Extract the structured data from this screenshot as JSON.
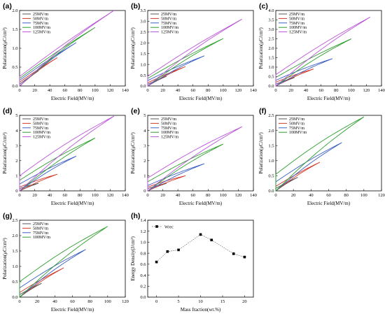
{
  "colors": {
    "25MV/m": "#555555",
    "50MV/m": "#d43a2a",
    "75MV/m": "#3b5fc4",
    "100MV/m": "#2e9e2e",
    "125MV/m": "#bb55d8",
    "wrec": "#000000"
  },
  "chart_data": [
    {
      "panel": "(a)",
      "type": "line",
      "xlabel": "Electric Field(MV/m)",
      "ylabel": "Polarization(μC/cm²)",
      "xlim": [
        0,
        140
      ],
      "ylim": [
        0,
        2.0
      ],
      "xticks": [
        0,
        20,
        40,
        60,
        80,
        100,
        120,
        140
      ],
      "yticks": [
        0.0,
        0.5,
        1.0,
        1.5,
        2.0
      ],
      "yticklabels": [
        "0.0",
        "0.5",
        "1.0",
        "1.5",
        "2.0"
      ],
      "legend": "top-left",
      "series": [
        {
          "name": "25MV/m",
          "emax": 25,
          "pmax": 0.4,
          "pr": 0.05
        },
        {
          "name": "50MV/m",
          "emax": 50,
          "pmax": 0.75,
          "pr": 0.1
        },
        {
          "name": "75MV/m",
          "emax": 75,
          "pmax": 1.15,
          "pr": 0.15
        },
        {
          "name": "100MV/m",
          "emax": 100,
          "pmax": 1.55,
          "pr": 0.2
        },
        {
          "name": "125MV/m",
          "emax": 125,
          "pmax": 2.0,
          "pr": 0.25
        }
      ]
    },
    {
      "panel": "(b)",
      "type": "line",
      "xlabel": "Electric Field(MV/m)",
      "ylabel": "Polarization(μC/cm²)",
      "xlim": [
        0,
        140
      ],
      "ylim": [
        0,
        3.5
      ],
      "xticks": [
        0,
        20,
        40,
        60,
        80,
        100,
        120,
        140
      ],
      "yticks": [
        0.0,
        0.5,
        1.0,
        1.5,
        2.0,
        2.5,
        3.0,
        3.5
      ],
      "yticklabels": [
        "0.0",
        "0.5",
        "1.0",
        "1.5",
        "2.0",
        "2.5",
        "3.0",
        "3.5"
      ],
      "legend": "top-left",
      "series": [
        {
          "name": "25MV/m",
          "emax": 25,
          "pmax": 0.45,
          "pr": 0.08
        },
        {
          "name": "50MV/m",
          "emax": 50,
          "pmax": 0.9,
          "pr": 0.15
        },
        {
          "name": "75MV/m",
          "emax": 75,
          "pmax": 1.4,
          "pr": 0.25
        },
        {
          "name": "100MV/m",
          "emax": 100,
          "pmax": 2.2,
          "pr": 0.35
        },
        {
          "name": "125MV/m",
          "emax": 125,
          "pmax": 3.1,
          "pr": 0.45
        }
      ]
    },
    {
      "panel": "(c)",
      "type": "line",
      "xlabel": "Electric Field(MV/m)",
      "ylabel": "Polarization(μC/cm²)",
      "xlim": [
        0,
        140
      ],
      "ylim": [
        0,
        4.0
      ],
      "xticks": [
        0,
        20,
        40,
        60,
        80,
        100,
        120,
        140
      ],
      "yticks": [
        0.0,
        0.5,
        1.0,
        1.5,
        2.0,
        2.5,
        3.0,
        3.5,
        4.0
      ],
      "yticklabels": [
        "0.0",
        "0.5",
        "1.0",
        "1.5",
        "2.0",
        "2.5",
        "3.0",
        "3.5",
        "4.0"
      ],
      "legend": "top-left",
      "series": [
        {
          "name": "25MV/m",
          "emax": 25,
          "pmax": 0.45,
          "pr": 0.1
        },
        {
          "name": "50MV/m",
          "emax": 50,
          "pmax": 0.9,
          "pr": 0.2
        },
        {
          "name": "75MV/m",
          "emax": 75,
          "pmax": 1.45,
          "pr": 0.3
        },
        {
          "name": "100MV/m",
          "emax": 100,
          "pmax": 2.5,
          "pr": 0.45
        },
        {
          "name": "125MV/m",
          "emax": 125,
          "pmax": 3.65,
          "pr": 0.6
        }
      ]
    },
    {
      "panel": "(d)",
      "type": "line",
      "xlabel": "Electric Field(MV/m)",
      "ylabel": "Polarization(μC/cm²)",
      "xlim": [
        0,
        140
      ],
      "ylim": [
        0,
        5
      ],
      "xticks": [
        0,
        20,
        40,
        60,
        80,
        100,
        120,
        140
      ],
      "yticks": [
        0,
        1,
        2,
        3,
        4,
        5
      ],
      "yticklabels": [
        "0",
        "1",
        "2",
        "3",
        "4",
        "5"
      ],
      "legend": "top-left",
      "series": [
        {
          "name": "25MV/m",
          "emax": 25,
          "pmax": 0.5,
          "pr": 0.15
        },
        {
          "name": "50MV/m",
          "emax": 50,
          "pmax": 1.1,
          "pr": 0.25
        },
        {
          "name": "75MV/m",
          "emax": 75,
          "pmax": 2.3,
          "pr": 0.45
        },
        {
          "name": "100MV/m",
          "emax": 100,
          "pmax": 3.5,
          "pr": 0.7
        },
        {
          "name": "125MV/m",
          "emax": 125,
          "pmax": 4.95,
          "pr": 1.0
        }
      ]
    },
    {
      "panel": "(e)",
      "type": "line",
      "xlabel": "Electric Field(MV/m)",
      "ylabel": "Polarization(μC/cm²)",
      "xlim": [
        0,
        140
      ],
      "ylim": [
        0,
        5
      ],
      "xticks": [
        0,
        20,
        40,
        60,
        80,
        100,
        120,
        140
      ],
      "yticks": [
        0,
        1,
        2,
        3,
        4,
        5
      ],
      "yticklabels": [
        "0",
        "1",
        "2",
        "3",
        "4",
        "5"
      ],
      "legend": "top-left",
      "series": [
        {
          "name": "25MV/m",
          "emax": 25,
          "pmax": 0.5,
          "pr": 0.15
        },
        {
          "name": "50MV/m",
          "emax": 50,
          "pmax": 1.0,
          "pr": 0.25
        },
        {
          "name": "75MV/m",
          "emax": 75,
          "pmax": 1.8,
          "pr": 0.35
        },
        {
          "name": "100MV/m",
          "emax": 100,
          "pmax": 3.1,
          "pr": 0.6
        },
        {
          "name": "125MV/m",
          "emax": 125,
          "pmax": 4.25,
          "pr": 0.85
        }
      ]
    },
    {
      "panel": "(f)",
      "type": "line",
      "xlabel": "Electric Field(MV/m)",
      "ylabel": "Polarization(μC/cm²)",
      "xlim": [
        0,
        120
      ],
      "ylim": [
        0,
        2.5
      ],
      "xticks": [
        0,
        20,
        40,
        60,
        80,
        100,
        120
      ],
      "yticks": [
        0.0,
        0.5,
        1.0,
        1.5,
        2.0,
        2.5
      ],
      "yticklabels": [
        "0.0",
        "0.5",
        "1.0",
        "1.5",
        "2.0",
        "2.5"
      ],
      "legend": "top-left",
      "series": [
        {
          "name": "25MV/m",
          "emax": 25,
          "pmax": 0.45,
          "pr": 0.08
        },
        {
          "name": "50MV/m",
          "emax": 50,
          "pmax": 0.95,
          "pr": 0.15
        },
        {
          "name": "75MV/m",
          "emax": 75,
          "pmax": 1.6,
          "pr": 0.3
        },
        {
          "name": "100MV/m",
          "emax": 100,
          "pmax": 2.45,
          "pr": 0.55
        }
      ]
    },
    {
      "panel": "(g)",
      "type": "line",
      "xlabel": "Electric Field(MV/m)",
      "ylabel": "Polarization(μC/cm²)",
      "xlim": [
        0,
        120
      ],
      "ylim": [
        0,
        2.5
      ],
      "xticks": [
        0,
        20,
        40,
        60,
        80,
        100,
        120
      ],
      "yticks": [
        0.0,
        0.5,
        1.0,
        1.5,
        2.0,
        2.5
      ],
      "yticklabels": [
        "0.0",
        "0.5",
        "1.0",
        "1.5",
        "2.0",
        "2.5"
      ],
      "legend": "top-left",
      "series": [
        {
          "name": "25MV/m",
          "emax": 25,
          "pmax": 0.45,
          "pr": 0.08
        },
        {
          "name": "50MV/m",
          "emax": 50,
          "pmax": 0.95,
          "pr": 0.15
        },
        {
          "name": "75MV/m",
          "emax": 75,
          "pmax": 1.55,
          "pr": 0.3
        },
        {
          "name": "100MV/m",
          "emax": 100,
          "pmax": 2.3,
          "pr": 0.5
        }
      ]
    },
    {
      "panel": "(h)",
      "type": "line",
      "xlabel": "Mass fraction(wt.%)",
      "ylabel": "Energy Density(J/cm³)",
      "xlim": [
        -2,
        22
      ],
      "ylim": [
        0,
        1.4
      ],
      "xticks": [
        0,
        5,
        10,
        15,
        20
      ],
      "yticks": [
        0.0,
        0.2,
        0.4,
        0.6,
        0.8,
        1.0,
        1.2,
        1.4
      ],
      "yticklabels": [
        "0.0",
        "0.2",
        "0.4",
        "0.6",
        "0.8",
        "1.0",
        "1.2",
        "1.4"
      ],
      "legend": "top-left",
      "series": [
        {
          "name": "Wrec",
          "x": [
            0,
            2.5,
            5,
            10,
            12.5,
            17.5,
            20
          ],
          "y": [
            0.64,
            0.83,
            0.86,
            1.14,
            1.04,
            0.79,
            0.73
          ]
        }
      ]
    }
  ]
}
